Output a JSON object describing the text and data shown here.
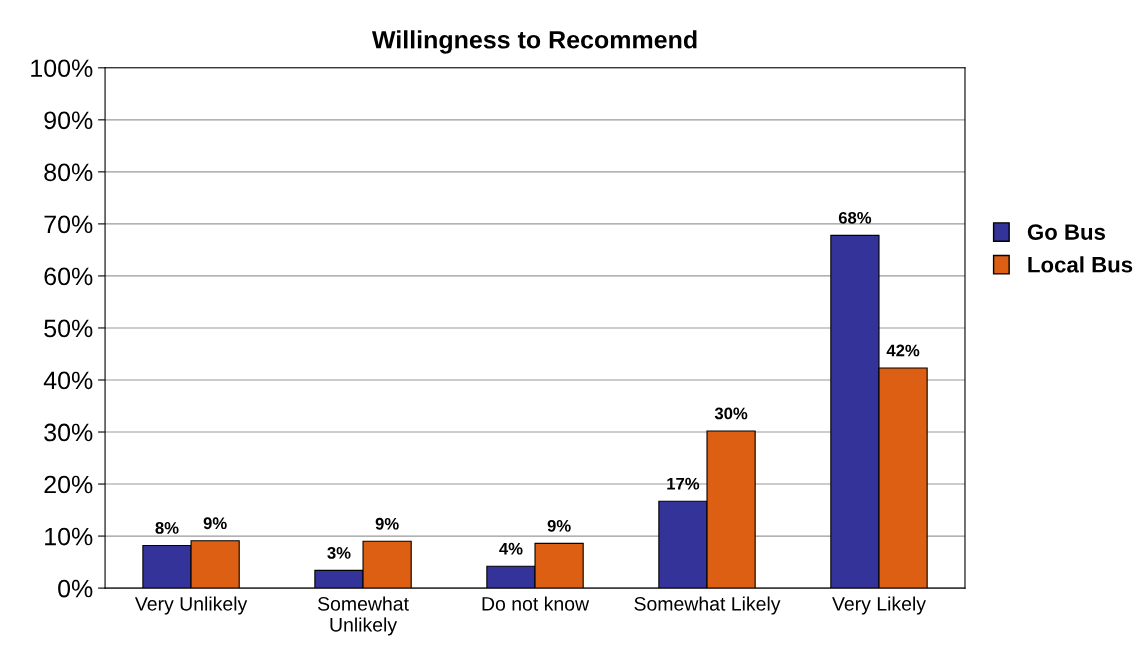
{
  "chart_data": {
    "type": "bar",
    "title": "Willingness to Recommend",
    "categories": [
      "Very Unlikely",
      "Somewhat\nUnlikely",
      "Do not know",
      "Somewhat Likely",
      "Very Likely"
    ],
    "series": [
      {
        "name": "Go Bus",
        "color": "#333399",
        "values": [
          8.2,
          3.4,
          4.2,
          16.7,
          67.8
        ],
        "value_labels": [
          "8%",
          "3%",
          "4%",
          "17%",
          "68%"
        ]
      },
      {
        "name": "Local Bus",
        "color": "#dd5f13",
        "values": [
          9.1,
          9.0,
          8.6,
          30.2,
          42.3
        ],
        "value_labels": [
          "9%",
          "9%",
          "9%",
          "30%",
          "42%"
        ]
      }
    ],
    "ylim": [
      0,
      100
    ],
    "yticks": [
      {
        "value": 0,
        "label": "0%"
      },
      {
        "value": 10,
        "label": "10%"
      },
      {
        "value": 20,
        "label": "20%"
      },
      {
        "value": 30,
        "label": "30%"
      },
      {
        "value": 40,
        "label": "40%"
      },
      {
        "value": 50,
        "label": "50%"
      },
      {
        "value": 60,
        "label": "60%"
      },
      {
        "value": 70,
        "label": "70%"
      },
      {
        "value": 80,
        "label": "80%"
      },
      {
        "value": 90,
        "label": "90%"
      },
      {
        "value": 100,
        "label": "100%"
      }
    ],
    "grid": "y",
    "legend": "right"
  }
}
